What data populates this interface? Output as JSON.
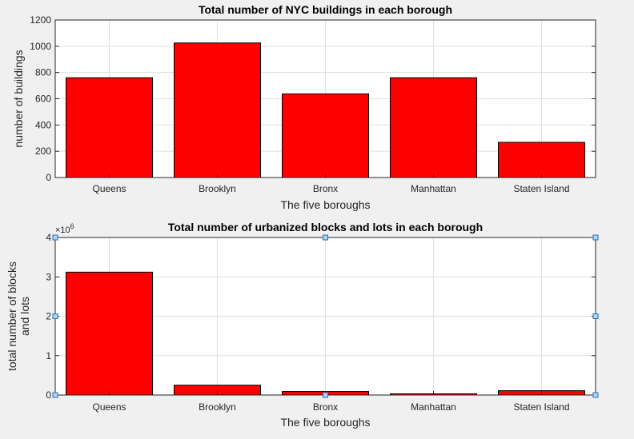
{
  "chart_data": [
    {
      "type": "bar",
      "title": "Total number of NYC buildings in each borough",
      "xlabel": "The five boroughs",
      "ylabel": "number of buildings",
      "categories": [
        "Queens",
        "Brooklyn",
        "Bronx",
        "Manhattan",
        "Staten Island"
      ],
      "values": [
        760,
        1025,
        637,
        760,
        268
      ],
      "ylim": [
        0,
        1200
      ],
      "yticks": [
        0,
        200,
        400,
        600,
        800,
        1000,
        1200
      ],
      "ytick_labels": [
        "0",
        "200",
        "400",
        "600",
        "800",
        "1000",
        "1200"
      ],
      "grid": true,
      "bar_color": "#ff0000"
    },
    {
      "type": "bar",
      "title": "Total number of urbanized blocks and lots in each borough",
      "xlabel": "The five boroughs",
      "ylabel": [
        "total number of blocks",
        "and lots"
      ],
      "categories": [
        "Queens",
        "Brooklyn",
        "Bronx",
        "Manhattan",
        "Staten Island"
      ],
      "values": [
        3120000,
        250000,
        90000,
        30000,
        110000
      ],
      "ylim": [
        0,
        4000000
      ],
      "yticks": [
        0,
        1000000,
        2000000,
        3000000,
        4000000
      ],
      "ytick_labels": [
        "0",
        "1",
        "2",
        "3",
        "4"
      ],
      "exponent_label": "×10",
      "exponent_power": "6",
      "grid": true,
      "selected": true,
      "bar_color": "#ff0000"
    }
  ]
}
